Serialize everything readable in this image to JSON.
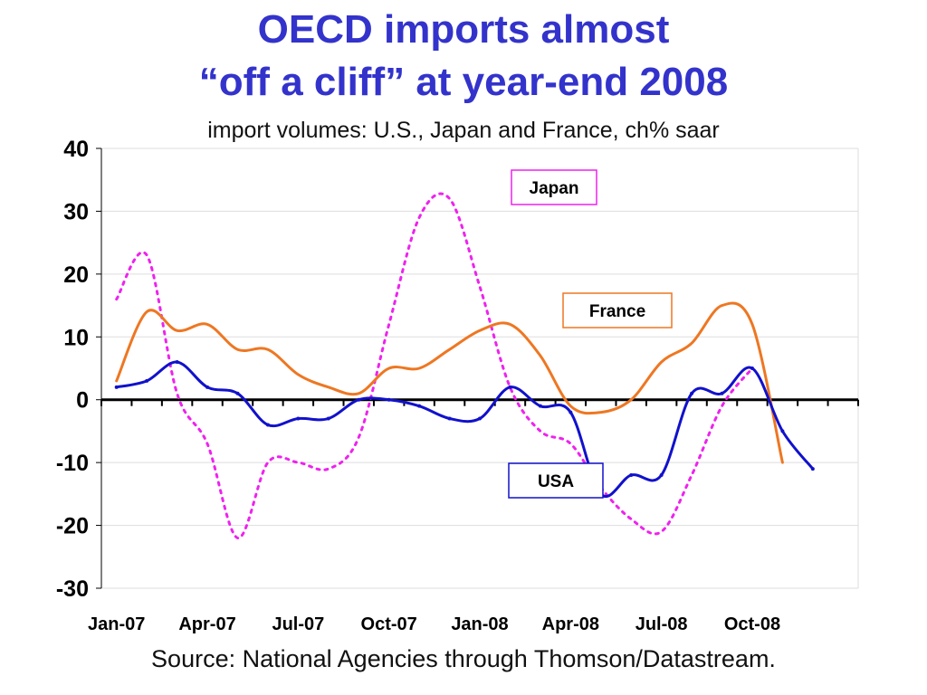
{
  "title_line1": "OECD imports almost",
  "title_line2": "“off a cliff” at year-end 2008",
  "subtitle": "import volumes: U.S., Japan and France, ch% saar",
  "source": "Source: National Agencies through Thomson/Datastream.",
  "colors": {
    "title": "#3333cc",
    "usa": "#1111cc",
    "france": "#ee7722",
    "japan": "#ee22ee",
    "zero_line": "#000000",
    "grid": "#dddddd"
  },
  "chart_data": {
    "type": "line",
    "xlabel": "",
    "ylabel": "",
    "ylim": [
      -30,
      40
    ],
    "yticks": [
      -30,
      -20,
      -10,
      0,
      10,
      20,
      30,
      40
    ],
    "x_tick_labels": [
      "Jan-07",
      "Apr-07",
      "Jul-07",
      "Oct-07",
      "Jan-08",
      "Apr-08",
      "Jul-08",
      "Oct-08"
    ],
    "grid": true,
    "x": [
      "Jan-07",
      "Feb-07",
      "Mar-07",
      "Apr-07",
      "May-07",
      "Jun-07",
      "Jul-07",
      "Aug-07",
      "Sep-07",
      "Oct-07",
      "Nov-07",
      "Dec-07",
      "Jan-08",
      "Feb-08",
      "Mar-08",
      "Apr-08",
      "May-08",
      "Jun-08",
      "Jul-08",
      "Aug-08",
      "Sep-08",
      "Oct-08",
      "Nov-08",
      "Dec-08"
    ],
    "series": [
      {
        "name": "Japan",
        "style": "dotted",
        "values": [
          16,
          23,
          1,
          -7,
          -22,
          -10,
          -10,
          -11,
          -6,
          12,
          29,
          32,
          18,
          2,
          -5,
          -7,
          -14,
          -19,
          -21,
          -12,
          -1,
          5,
          null,
          null
        ]
      },
      {
        "name": "France",
        "style": "solid",
        "values": [
          3,
          14,
          11,
          12,
          8,
          8,
          4,
          2,
          1,
          5,
          5,
          8,
          11,
          12,
          7,
          -1,
          -2,
          0,
          6,
          9,
          15,
          12,
          -10,
          null
        ]
      },
      {
        "name": "USA",
        "style": "solid",
        "values": [
          2,
          3,
          6,
          2,
          1,
          -4,
          -3,
          -3,
          0,
          0,
          -1,
          -3,
          -3,
          2,
          -1,
          -2,
          -15,
          -12,
          -12,
          1,
          1,
          5,
          -5,
          -11
        ]
      }
    ],
    "annotations": [
      {
        "series": "Japan",
        "text": "Japan"
      },
      {
        "series": "France",
        "text": "France"
      },
      {
        "series": "USA",
        "text": "USA"
      }
    ]
  }
}
